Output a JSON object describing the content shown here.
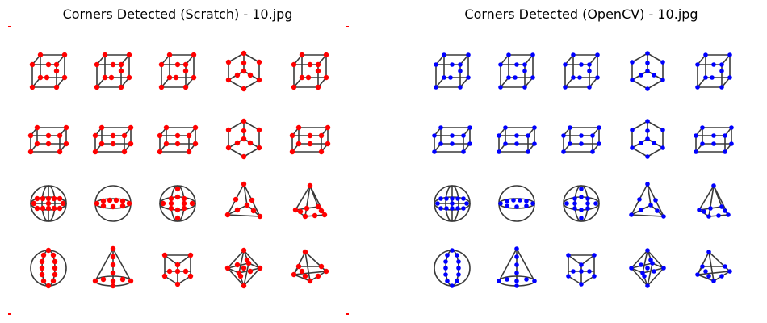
{
  "panels": [
    {
      "title": "Corners Detected (Scratch) - 10.jpg",
      "method": "scratch",
      "corner_color": "#ff0000"
    },
    {
      "title": "Corners Detected (OpenCV) - 10.jpg",
      "method": "opencv",
      "corner_color": "#0000ff"
    }
  ],
  "colors": {
    "line": "#3a3a3a",
    "background": "#ffffff"
  },
  "shape_grid": {
    "rows": 4,
    "cols": 5,
    "shapes": [
      [
        "cube-icon",
        "cube-icon",
        "cube-icon",
        "hex-cube-icon",
        "cube-icon"
      ],
      [
        "box-icon",
        "box-icon",
        "box-icon",
        "hex-cube-icon",
        "box-icon"
      ],
      [
        "sphere-grid-icon",
        "ellipse-circle-icon",
        "sphere-cross-icon",
        "tetrahedron-icon",
        "pyramid-icon"
      ],
      [
        "sphere-vertical-icon",
        "cone-icon",
        "prism-icon",
        "octahedron-icon",
        "frustum-icon"
      ]
    ]
  }
}
